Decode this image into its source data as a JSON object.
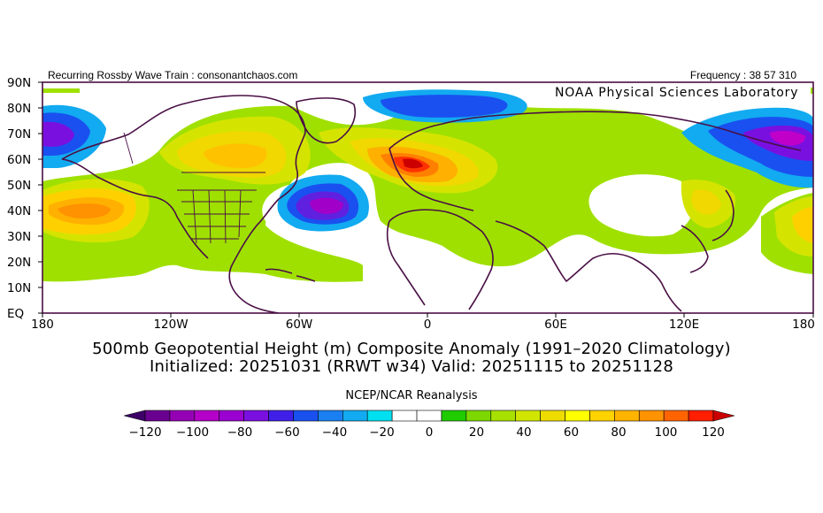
{
  "header": {
    "left": "Recurring Rossby Wave Train : consonantchaos.com",
    "right": "Frequency : 38 57 310",
    "lab": "NOAA Physical Sciences Laboratory"
  },
  "map": {
    "lat_labels": [
      "90N",
      "80N",
      "70N",
      "60N",
      "50N",
      "40N",
      "30N",
      "20N",
      "10N",
      "EQ"
    ],
    "lon_labels": [
      "180",
      "120W",
      "60W",
      "0",
      "60E",
      "120E",
      "180"
    ],
    "colors": {
      "land_outline": "#4a0f45",
      "frame": "#4a0f45"
    }
  },
  "caption": {
    "line1": "500mb Geopotential Height (m) Composite Anomaly (1991–2020 Climatology)",
    "line2": "Initialized: 20251031 (RRWT w34) Valid: 20251115 to 20251128"
  },
  "colorbar": {
    "title": "NCEP/NCAR Reanalysis",
    "ticks": [
      "−120",
      "−100",
      "−80",
      "−60",
      "−40",
      "−20",
      "0",
      "20",
      "40",
      "60",
      "80",
      "100",
      "120"
    ],
    "colors": [
      "#3c0068",
      "#6a0090",
      "#9400b4",
      "#b400c8",
      "#9a00d0",
      "#7a10e0",
      "#4020e8",
      "#1a50f0",
      "#1a7ff0",
      "#12aaf0",
      "#00e0f0",
      "#ffffff",
      "#ffffff",
      "#20cc00",
      "#7cd800",
      "#a8e000",
      "#d0e600",
      "#eedc00",
      "#ffff00",
      "#ffd200",
      "#ffb400",
      "#ff9200",
      "#ff6400",
      "#ff1e00",
      "#cc0000"
    ]
  }
}
